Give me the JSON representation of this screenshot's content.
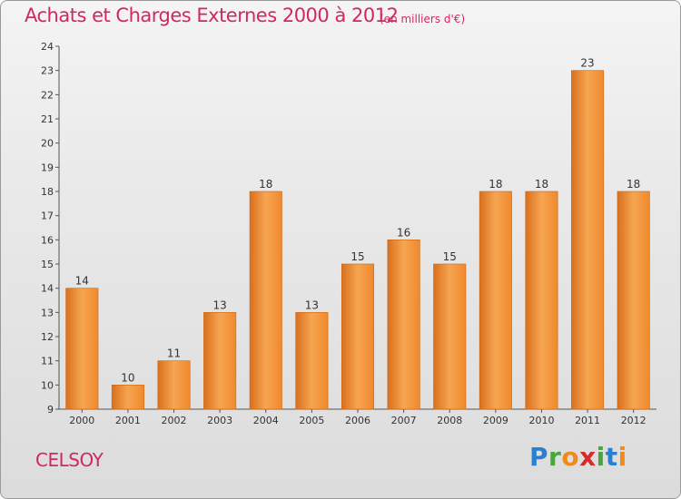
{
  "header": {
    "title": "Achats et Charges Externes 2000 à 2012",
    "unit": "(en milliers d'€)"
  },
  "footer": {
    "commune": "CELSOY",
    "logo_letters": [
      "P",
      "r",
      "o",
      "x",
      "i",
      "t",
      "i"
    ],
    "logo_colors": [
      "#2a7fd1",
      "#46a83a",
      "#f08a1c",
      "#d62b2b",
      "#46a83a",
      "#2a7fd1",
      "#f08a1c"
    ]
  },
  "chart_data": {
    "type": "bar",
    "title": "Achats et Charges Externes 2000 à 2012",
    "subtitle": "(en milliers d'€)",
    "xlabel": "",
    "ylabel": "",
    "categories": [
      "2000",
      "2001",
      "2002",
      "2003",
      "2004",
      "2005",
      "2006",
      "2007",
      "2008",
      "2009",
      "2010",
      "2011",
      "2012"
    ],
    "values": [
      14,
      10,
      11,
      13,
      18,
      13,
      15,
      16,
      15,
      18,
      18,
      23,
      18
    ],
    "ylim": [
      9,
      24
    ],
    "yticks": [
      9,
      10,
      11,
      12,
      13,
      14,
      15,
      16,
      17,
      18,
      19,
      20,
      21,
      22,
      23,
      24
    ],
    "grid": false,
    "legend": "none",
    "bar_color": "#f0892c",
    "bar_highlight": "#f6a552",
    "bar_shadow": "#d9701c"
  }
}
